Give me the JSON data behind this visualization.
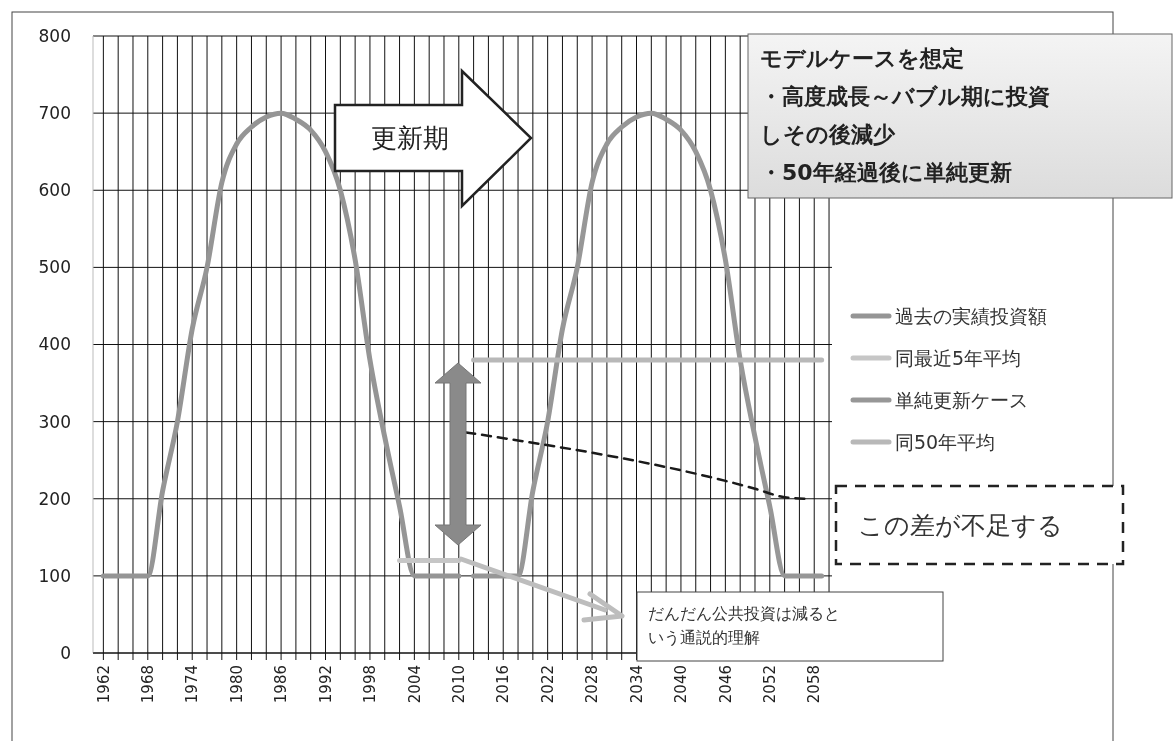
{
  "chart_data": {
    "type": "line",
    "xlim": [
      1960.6,
      2060.4
    ],
    "ylim": [
      0,
      800
    ],
    "yticks": [
      0,
      100,
      200,
      300,
      400,
      500,
      600,
      700,
      800
    ],
    "xticks": [
      1962,
      {
        "value": 1964,
        "label": null
      },
      {
        "value": 1966,
        "label": null
      },
      1968,
      {
        "value": 1970,
        "label": null
      },
      {
        "value": 1972,
        "label": null
      },
      1974,
      {
        "value": 1976,
        "label": null
      },
      {
        "value": 1978,
        "label": null
      },
      1980,
      {
        "value": 1982,
        "label": null
      },
      {
        "value": 1984,
        "label": null
      },
      1986,
      {
        "value": 1988,
        "label": null
      },
      {
        "value": 1990,
        "label": null
      },
      1992,
      {
        "value": 1994,
        "label": null
      },
      {
        "value": 1996,
        "label": null
      },
      1998,
      {
        "value": 2000,
        "label": null
      },
      {
        "value": 2002,
        "label": null
      },
      2004,
      {
        "value": 2006,
        "label": null
      },
      {
        "value": 2008,
        "label": null
      },
      2010,
      {
        "value": 2012,
        "label": null
      },
      {
        "value": 2014,
        "label": null
      },
      2016,
      {
        "value": 2018,
        "label": null
      },
      {
        "value": 2020,
        "label": null
      },
      2022,
      {
        "value": 2024,
        "label": null
      },
      {
        "value": 2026,
        "label": null
      },
      2028,
      {
        "value": 2030,
        "label": null
      },
      {
        "value": 2032,
        "label": null
      },
      2034,
      {
        "value": 2036,
        "label": null
      },
      {
        "value": 2038,
        "label": null
      },
      2040,
      {
        "value": 2042,
        "label": null
      },
      {
        "value": 2044,
        "label": null
      },
      2046,
      {
        "value": 2048,
        "label": null
      },
      {
        "value": 2050,
        "label": null
      },
      2052,
      {
        "value": 2054,
        "label": null
      },
      {
        "value": 2056,
        "label": null
      },
      2058,
      {
        "value": 2060,
        "label": null
      }
    ],
    "grid": true,
    "legend": "right",
    "series": [
      {
        "name": "過去の実績投資額",
        "color": "#959595",
        "x": [
          1962,
          1968,
          1970,
          1972,
          1974,
          1976,
          1978,
          1980,
          1982,
          1984,
          1986,
          1988,
          1990,
          1992,
          1994,
          1996,
          1998,
          2000,
          2002,
          2004,
          2010
        ],
        "values": [
          100,
          100,
          210,
          300,
          420,
          500,
          610,
          660,
          682,
          695,
          700,
          692,
          678,
          650,
          600,
          510,
          380,
          280,
          190,
          100,
          100
        ]
      },
      {
        "name": "同最近5年平均",
        "color": "#c6c6c6",
        "x": [
          2002,
          2010
        ],
        "values": [
          120,
          120
        ]
      },
      {
        "name": "単純更新ケース",
        "color": "#979797",
        "x": [
          2012,
          2018,
          2020,
          2022,
          2024,
          2026,
          2028,
          2030,
          2032,
          2034,
          2036,
          2038,
          2040,
          2042,
          2044,
          2046,
          2048,
          2050,
          2052,
          2054,
          2059
        ],
        "values": [
          100,
          100,
          210,
          300,
          420,
          500,
          610,
          660,
          682,
          695,
          700,
          692,
          678,
          650,
          600,
          510,
          380,
          280,
          190,
          100,
          100
        ]
      },
      {
        "name": "同50年平均",
        "color": "#b8b8b8",
        "x": [
          2012,
          2059
        ],
        "values": [
          380,
          380
        ]
      },
      {
        "type": "line",
        "line_style": "dashed",
        "color": "#1a1a1a",
        "x": [
          2011,
          2050,
          2054,
          2057
        ],
        "values": [
          286,
          213,
          202,
          200
        ]
      }
    ],
    "annotations": [
      "更新期",
      "モデルケースを想定",
      "・高度成長～バブル期に投資しその後減少",
      "・50年経過後に単純更新",
      "この差が不足する",
      "だんだん公共投資は減るという通説的理解"
    ]
  }
}
